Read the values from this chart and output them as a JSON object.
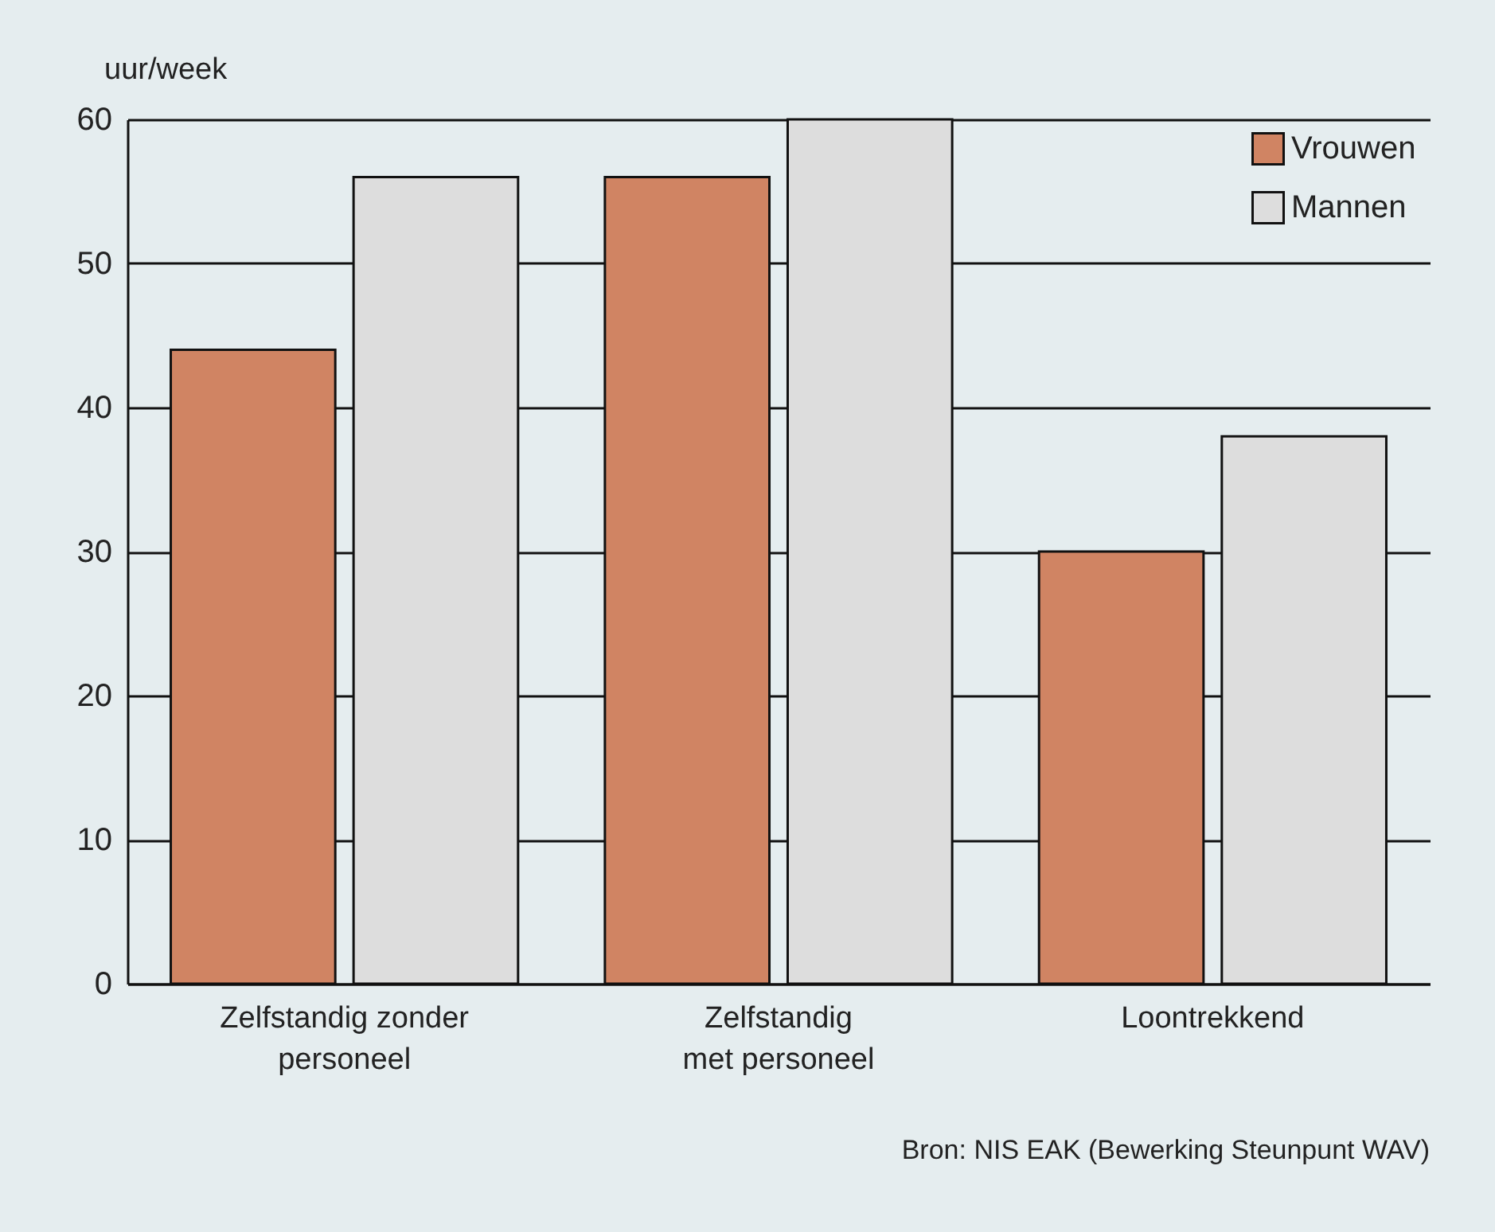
{
  "chart_data": {
    "type": "bar",
    "ylabel": "uur/week",
    "categories": [
      "Zelfstandig zonder\npersoneel",
      "Zelfstandig\nmet personeel",
      "Loontrekkend"
    ],
    "series": [
      {
        "name": "Vrouwen",
        "color": "#d08463",
        "values": [
          44,
          56,
          30
        ]
      },
      {
        "name": "Mannen",
        "color": "#dddddd",
        "values": [
          56,
          60,
          38
        ]
      }
    ],
    "ylim": [
      0,
      60
    ],
    "yticks": [
      0,
      10,
      20,
      30,
      40,
      50,
      60
    ],
    "grid": "y",
    "legend": "top right",
    "annotations": [
      "Bron: NIS EAK (Bewerking Steunpunt WAV)"
    ]
  }
}
